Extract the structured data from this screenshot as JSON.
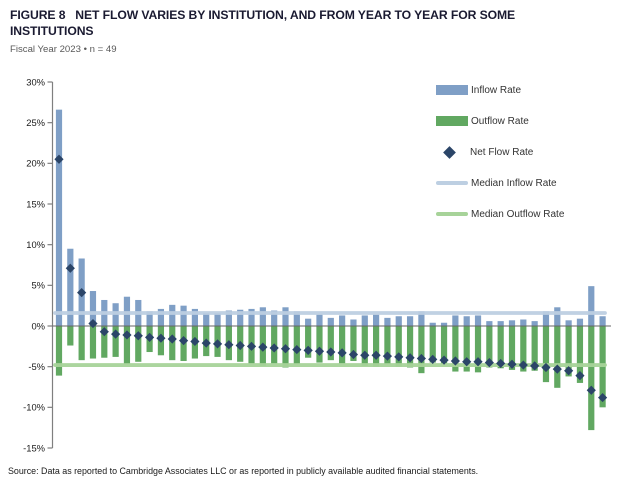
{
  "header": {
    "figure_label": "FIGURE 8",
    "title": "NET FLOW VARIES BY INSTITUTION, AND FROM YEAR TO YEAR FOR SOME INSTITUTIONS",
    "subtitle": "Fiscal Year 2023 • n = 49"
  },
  "legend": {
    "items": [
      {
        "label": "Inflow Rate",
        "swatch": "bar",
        "color_key": "inflow"
      },
      {
        "label": "Outflow Rate",
        "swatch": "bar",
        "color_key": "outflow"
      },
      {
        "label": "Net Flow Rate",
        "swatch": "diamond",
        "color_key": "net"
      },
      {
        "label": "Median Inflow Rate",
        "swatch": "line",
        "color_key": "median_inflow"
      },
      {
        "label": "Median Outflow Rate",
        "swatch": "line",
        "color_key": "median_outflow"
      }
    ]
  },
  "colors": {
    "inflow": "#7f9fc6",
    "outflow": "#61a861",
    "net": "#2b4568",
    "median_inflow": "#bdcfe2",
    "median_outflow": "#a7d399",
    "axis": "#7f7f7f",
    "zero_line": "#666666",
    "tick_label": "#1a1a1a"
  },
  "chart_data": {
    "type": "bar",
    "n": 49,
    "x_axis_labels_shown": false,
    "ylim": [
      -15,
      30
    ],
    "grid": false,
    "legend_position": "top-right",
    "yticks": [
      {
        "value": 30,
        "label": "30%"
      },
      {
        "value": 25,
        "label": "25%"
      },
      {
        "value": 20,
        "label": "20%"
      },
      {
        "value": 15,
        "label": "15%"
      },
      {
        "value": 10,
        "label": "10%"
      },
      {
        "value": 5,
        "label": "5%"
      },
      {
        "value": 0,
        "label": "0%"
      },
      {
        "value": -5,
        "label": "-5%"
      },
      {
        "value": -10,
        "label": "-10%"
      },
      {
        "value": -15,
        "label": "-15%"
      }
    ],
    "series": [
      {
        "name": "Inflow Rate",
        "render": "bar",
        "color_key": "inflow",
        "values": [
          26.6,
          9.5,
          8.3,
          4.3,
          3.2,
          2.8,
          3.6,
          3.2,
          1.8,
          2.1,
          2.6,
          2.5,
          2.1,
          1.6,
          1.6,
          1.9,
          2.0,
          2.1,
          2.3,
          1.9,
          2.3,
          1.8,
          0.9,
          1.4,
          1.0,
          1.3,
          0.8,
          1.3,
          1.4,
          1.0,
          1.2,
          1.2,
          1.8,
          0.4,
          0.4,
          1.3,
          1.2,
          1.3,
          0.6,
          0.6,
          0.7,
          0.8,
          0.6,
          1.8,
          2.3,
          0.7,
          0.9,
          4.9,
          1.2
        ]
      },
      {
        "name": "Outflow Rate",
        "render": "bar",
        "color_key": "outflow",
        "values": [
          -6.1,
          -2.4,
          -4.2,
          -4.0,
          -3.9,
          -3.8,
          -4.7,
          -4.4,
          -3.2,
          -3.6,
          -4.2,
          -4.3,
          -4.0,
          -3.7,
          -3.8,
          -4.2,
          -4.4,
          -4.6,
          -4.9,
          -4.6,
          -5.1,
          -4.7,
          -3.9,
          -4.5,
          -4.2,
          -4.6,
          -4.3,
          -4.9,
          -5.0,
          -4.7,
          -5.0,
          -5.1,
          -5.8,
          -4.5,
          -4.6,
          -5.6,
          -5.6,
          -5.7,
          -5.1,
          -5.2,
          -5.4,
          -5.6,
          -5.5,
          -6.9,
          -7.6,
          -6.2,
          -7.0,
          -12.8,
          -10.0
        ]
      },
      {
        "name": "Net Flow Rate",
        "render": "diamond",
        "color_key": "net",
        "values": [
          20.5,
          7.1,
          4.1,
          0.3,
          -0.7,
          -1.0,
          -1.1,
          -1.2,
          -1.4,
          -1.5,
          -1.6,
          -1.8,
          -1.9,
          -2.1,
          -2.2,
          -2.3,
          -2.4,
          -2.5,
          -2.6,
          -2.7,
          -2.8,
          -2.9,
          -3.0,
          -3.1,
          -3.2,
          -3.3,
          -3.5,
          -3.6,
          -3.6,
          -3.7,
          -3.8,
          -3.9,
          -4.0,
          -4.1,
          -4.2,
          -4.3,
          -4.4,
          -4.4,
          -4.5,
          -4.6,
          -4.7,
          -4.8,
          -4.9,
          -5.1,
          -5.3,
          -5.5,
          -6.1,
          -7.9,
          -8.8
        ]
      }
    ],
    "reference_lines": [
      {
        "name": "Median Inflow Rate",
        "value": 1.6,
        "color_key": "median_inflow"
      },
      {
        "name": "Median Outflow Rate",
        "value": -4.8,
        "color_key": "median_outflow"
      }
    ]
  },
  "source": "Source: Data as reported to Cambridge Associates LLC or as reported in publicly available audited financial statements."
}
